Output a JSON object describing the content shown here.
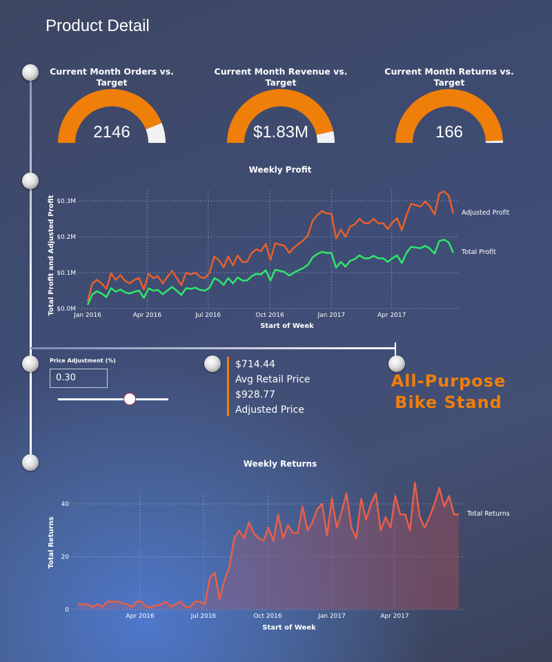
{
  "page": {
    "title": "Product Detail"
  },
  "gauges": [
    {
      "title": "Current Month Orders vs. Target",
      "value": "2146",
      "fill_fraction": 0.88
    },
    {
      "title": "Current Month Revenue vs. Target",
      "value": "$1.83M",
      "fill_fraction": 0.93
    },
    {
      "title": "Current Month Returns vs. Target",
      "value": "166",
      "fill_fraction": 0.985
    }
  ],
  "colors": {
    "gauge_fill": "#f07f09",
    "gauge_rest": "#f2f2f2",
    "adjusted_profit": "#e8602c",
    "total_profit": "#2ee86a",
    "returns": "#e8604a",
    "accent": "#f07f09"
  },
  "price_adjustment": {
    "label": "Price Adjustment (%)",
    "value": "0.30",
    "slider_fraction": 0.65
  },
  "kpis": {
    "avg_retail_price": "$714.44",
    "avg_retail_label": "Avg Retail Price",
    "adjusted_price": "$928.77",
    "adjusted_label": "Adjusted Price"
  },
  "product": {
    "name_line1": "All-Purpose",
    "name_line2": "Bike Stand"
  },
  "weeks": [
    "2016-01-03",
    "2016-01-10",
    "2016-01-17",
    "2016-01-24",
    "2016-01-31",
    "2016-02-07",
    "2016-02-14",
    "2016-02-21",
    "2016-02-28",
    "2016-03-06",
    "2016-03-13",
    "2016-03-20",
    "2016-03-27",
    "2016-04-03",
    "2016-04-10",
    "2016-04-17",
    "2016-04-24",
    "2016-05-01",
    "2016-05-08",
    "2016-05-15",
    "2016-05-22",
    "2016-05-29",
    "2016-06-05",
    "2016-06-12",
    "2016-06-19",
    "2016-06-26",
    "2016-07-03",
    "2016-07-10",
    "2016-07-17",
    "2016-07-24",
    "2016-07-31",
    "2016-08-07",
    "2016-08-14",
    "2016-08-21",
    "2016-08-28",
    "2016-09-04",
    "2016-09-11",
    "2016-09-18",
    "2016-09-25",
    "2016-10-02",
    "2016-10-09",
    "2016-10-16",
    "2016-10-23",
    "2016-10-30",
    "2016-11-06",
    "2016-11-13",
    "2016-11-20",
    "2016-11-27",
    "2016-12-04",
    "2016-12-11",
    "2016-12-18",
    "2016-12-25",
    "2017-01-01",
    "2017-01-08",
    "2017-01-15",
    "2017-01-22",
    "2017-01-29",
    "2017-02-05",
    "2017-02-12",
    "2017-02-19",
    "2017-02-26",
    "2017-03-05",
    "2017-03-12",
    "2017-03-19",
    "2017-03-26",
    "2017-04-02",
    "2017-04-09",
    "2017-04-16",
    "2017-04-23",
    "2017-04-30",
    "2017-05-07",
    "2017-05-14",
    "2017-05-21",
    "2017-05-28",
    "2017-06-04",
    "2017-06-11",
    "2017-06-18",
    "2017-06-25",
    "2017-07-02"
  ],
  "chart_data": [
    {
      "type": "line",
      "title": "Weekly Profit",
      "xlabel": "Start of Week",
      "ylabel": "Total Profit and Adjusted Profit",
      "ylim": [
        0,
        0.3
      ],
      "y_unit": "$M",
      "yticks": [
        {
          "value": 0,
          "label": "$0.0M"
        },
        {
          "value": 0.1,
          "label": "$0.1M"
        },
        {
          "value": 0.2,
          "label": "$0.2M"
        },
        {
          "value": 0.3,
          "label": "$0.3M"
        }
      ],
      "xticks": [
        {
          "label": "Jan 2016",
          "date": "2016-01-03"
        },
        {
          "label": "Apr 2016",
          "date": "2016-04-01"
        },
        {
          "label": "Jul 2016",
          "date": "2016-07-01"
        },
        {
          "label": "Oct 2016",
          "date": "2016-10-01"
        },
        {
          "label": "Jan 2017",
          "date": "2017-01-01"
        },
        {
          "label": "Apr 2017",
          "date": "2017-04-01"
        }
      ],
      "grid": true,
      "legend": "inline-right",
      "series": [
        {
          "name": "Adjusted Profit",
          "values": [
            0.02,
            0.07,
            0.08,
            0.07,
            0.055,
            0.098,
            0.08,
            0.093,
            0.077,
            0.07,
            0.08,
            0.085,
            0.053,
            0.097,
            0.085,
            0.09,
            0.07,
            0.088,
            0.105,
            0.085,
            0.065,
            0.1,
            0.095,
            0.1,
            0.088,
            0.085,
            0.1,
            0.145,
            0.135,
            0.115,
            0.145,
            0.12,
            0.148,
            0.13,
            0.13,
            0.155,
            0.165,
            0.16,
            0.18,
            0.135,
            0.182,
            0.178,
            0.175,
            0.155,
            0.17,
            0.18,
            0.19,
            0.205,
            0.245,
            0.26,
            0.272,
            0.265,
            0.265,
            0.195,
            0.22,
            0.2,
            0.228,
            0.235,
            0.25,
            0.238,
            0.238,
            0.25,
            0.237,
            0.238,
            0.222,
            0.24,
            0.252,
            0.218,
            0.26,
            0.292,
            0.288,
            0.284,
            0.298,
            0.285,
            0.262,
            0.32,
            0.327,
            0.315,
            0.265
          ]
        },
        {
          "name": "Total Profit",
          "values": [
            0.01,
            0.04,
            0.048,
            0.042,
            0.032,
            0.057,
            0.047,
            0.053,
            0.045,
            0.042,
            0.047,
            0.05,
            0.03,
            0.056,
            0.05,
            0.052,
            0.04,
            0.05,
            0.06,
            0.05,
            0.038,
            0.057,
            0.055,
            0.058,
            0.052,
            0.05,
            0.058,
            0.085,
            0.078,
            0.066,
            0.085,
            0.07,
            0.087,
            0.078,
            0.078,
            0.09,
            0.097,
            0.095,
            0.107,
            0.078,
            0.108,
            0.105,
            0.102,
            0.092,
            0.1,
            0.107,
            0.113,
            0.122,
            0.143,
            0.152,
            0.158,
            0.155,
            0.155,
            0.114,
            0.13,
            0.117,
            0.133,
            0.138,
            0.148,
            0.14,
            0.14,
            0.147,
            0.14,
            0.14,
            0.13,
            0.14,
            0.148,
            0.127,
            0.155,
            0.172,
            0.17,
            0.168,
            0.175,
            0.167,
            0.153,
            0.188,
            0.192,
            0.185,
            0.155
          ]
        }
      ]
    },
    {
      "type": "area",
      "title": "Weekly Returns",
      "xlabel": "Start of Week",
      "ylabel": "Total Returns",
      "ylim": [
        0,
        48
      ],
      "yticks": [
        {
          "value": 0,
          "label": "0"
        },
        {
          "value": 20,
          "label": "20"
        },
        {
          "value": 40,
          "label": "40"
        }
      ],
      "xticks": [
        {
          "label": "Apr 2016",
          "date": "2016-04-01"
        },
        {
          "label": "Jul 2016",
          "date": "2016-07-01"
        },
        {
          "label": "Oct 2016",
          "date": "2016-10-01"
        },
        {
          "label": "Jan 2017",
          "date": "2017-01-01"
        },
        {
          "label": "Apr 2017",
          "date": "2017-04-01"
        }
      ],
      "grid": true,
      "legend": "inline-right",
      "series": [
        {
          "name": "Total Returns",
          "values": [
            2,
            2,
            2,
            1,
            2,
            1,
            3,
            3,
            3,
            2.5,
            2,
            1,
            3,
            3,
            1,
            1,
            1.5,
            2,
            3,
            1,
            2,
            3,
            1,
            1,
            3,
            3,
            2,
            12,
            14,
            4,
            11,
            16,
            27,
            30,
            27,
            33,
            29,
            27,
            26,
            31,
            26,
            36,
            27,
            32,
            29,
            29,
            39,
            30,
            33,
            38,
            40,
            28,
            42,
            31,
            37,
            44,
            31,
            27,
            42,
            34,
            40,
            44,
            30,
            35,
            31,
            43,
            36,
            36,
            30,
            48,
            35,
            31,
            35,
            40,
            46,
            39,
            43,
            36,
            36
          ]
        }
      ]
    }
  ]
}
